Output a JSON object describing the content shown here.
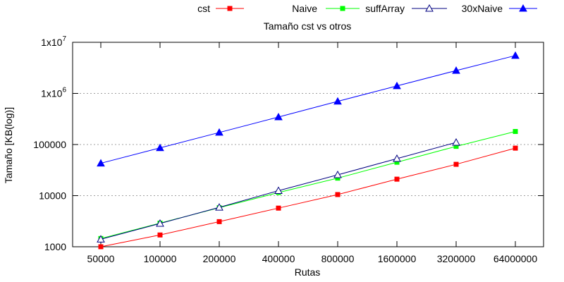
{
  "chart_data": {
    "type": "line",
    "title": "Tamaño cst vs otros",
    "xlabel": "Rutas",
    "ylabel": "Tamaño [KB(log)]",
    "yscale": "log",
    "ylim": [
      1000,
      10000000
    ],
    "grid": "horizontal dotted",
    "legend_placement": "top",
    "categories": [
      "50000",
      "100000",
      "200000",
      "400000",
      "800000",
      "1600000",
      "3200000",
      "64000000"
    ],
    "y_ticks": [
      {
        "value": 1000,
        "label": "1000"
      },
      {
        "value": 10000,
        "label": "10000"
      },
      {
        "value": 100000,
        "label": "100000"
      },
      {
        "value": 1000000,
        "label": "1x10",
        "exp": "6"
      },
      {
        "value": 10000000,
        "label": "1x10",
        "exp": "7"
      }
    ],
    "series": [
      {
        "name": "cst",
        "color": "#ff0000",
        "marker": "filled-square",
        "values": [
          1000,
          1700,
          3100,
          5700,
          10500,
          21000,
          41000,
          85000
        ]
      },
      {
        "name": "Naive",
        "color": "#00ff00",
        "marker": "filled-square",
        "values": [
          1450,
          2900,
          5800,
          11500,
          22000,
          45000,
          92000,
          180000
        ]
      },
      {
        "name": "suffArray",
        "color": "#000080",
        "marker": "hollow-triangle",
        "values": [
          1400,
          2850,
          5900,
          12500,
          25500,
          53000,
          110000,
          null
        ]
      },
      {
        "name": "30xNaive",
        "color": "#0000ff",
        "marker": "filled-triangle",
        "values": [
          43000,
          86000,
          172000,
          345000,
          700000,
          1400000,
          2800000,
          5500000
        ]
      }
    ]
  }
}
